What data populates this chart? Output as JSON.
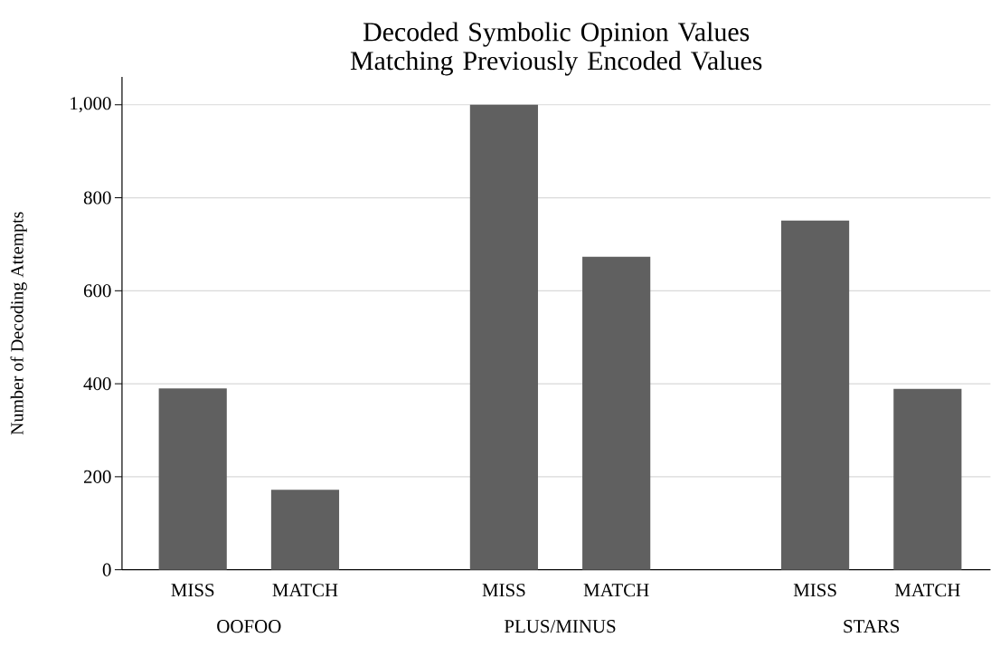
{
  "chart_data": {
    "type": "bar",
    "title": "Decoded Symbolic Opinion Values Matching Previously Encoded Values",
    "ylabel": "Number of Decoding Attempts",
    "categories": [
      "MISS",
      "MATCH",
      "MISS",
      "MATCH",
      "MISS",
      "MATCH"
    ],
    "values": [
      390,
      172,
      1000,
      673,
      751,
      389
    ],
    "color": "#606060",
    "ylim": [
      0,
      1060
    ],
    "yticks": [
      0,
      200,
      400,
      600,
      800,
      {
        "value": 1000,
        "label": "1,000"
      }
    ],
    "grid": "y",
    "annotations": [
      "OOFOO",
      "PLUS/MINUS",
      "STARS"
    ]
  }
}
